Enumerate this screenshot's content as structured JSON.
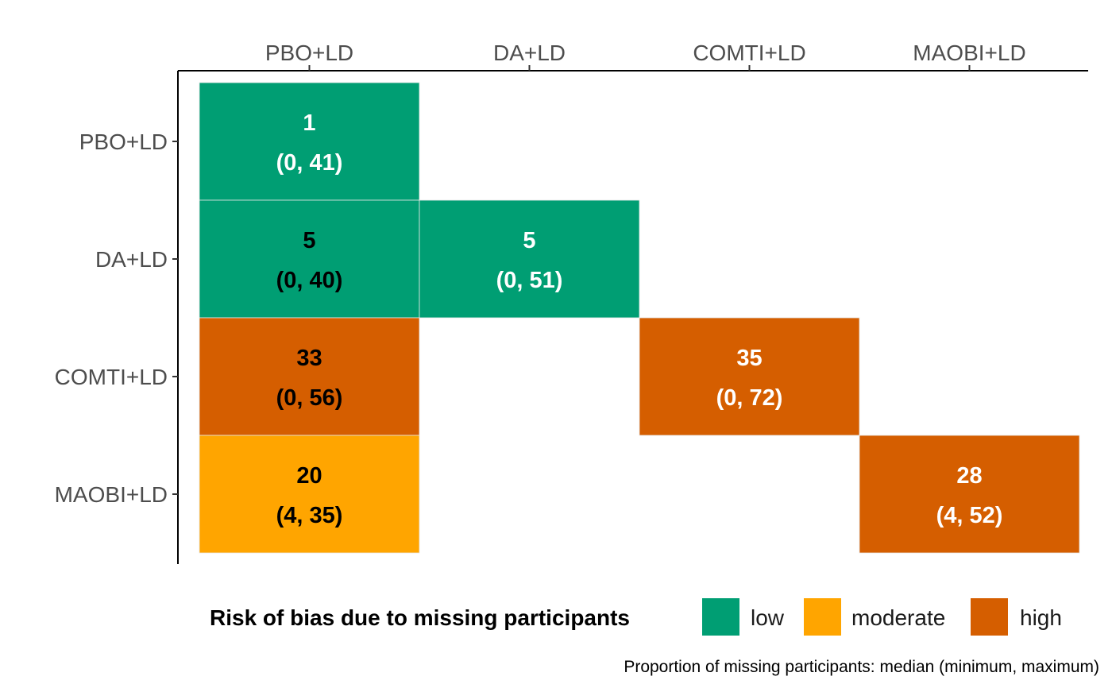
{
  "chart_data": {
    "type": "heatmap",
    "x_categories": [
      "PBO+LD",
      "DA+LD",
      "COMTI+LD",
      "MAOBI+LD"
    ],
    "y_categories": [
      "PBO+LD",
      "DA+LD",
      "COMTI+LD",
      "MAOBI+LD"
    ],
    "cells": [
      {
        "x": "PBO+LD",
        "y": "PBO+LD",
        "median": "1",
        "range": "(0, 41)",
        "risk": "low",
        "text_color": "#ffffff"
      },
      {
        "x": "PBO+LD",
        "y": "DA+LD",
        "median": "5",
        "range": "(0, 40)",
        "risk": "low",
        "text_color": "#000000"
      },
      {
        "x": "DA+LD",
        "y": "DA+LD",
        "median": "5",
        "range": "(0, 51)",
        "risk": "low",
        "text_color": "#ffffff"
      },
      {
        "x": "PBO+LD",
        "y": "COMTI+LD",
        "median": "33",
        "range": "(0, 56)",
        "risk": "high",
        "text_color": "#000000"
      },
      {
        "x": "COMTI+LD",
        "y": "COMTI+LD",
        "median": "35",
        "range": "(0, 72)",
        "risk": "high",
        "text_color": "#ffffff"
      },
      {
        "x": "PBO+LD",
        "y": "MAOBI+LD",
        "median": "20",
        "range": "(4, 35)",
        "risk": "moderate",
        "text_color": "#000000"
      },
      {
        "x": "MAOBI+LD",
        "y": "MAOBI+LD",
        "median": "28",
        "range": "(4, 52)",
        "risk": "high",
        "text_color": "#ffffff"
      }
    ],
    "legend": {
      "title": "Risk of bias due to missing participants",
      "position": "bottom",
      "entries": [
        {
          "label": "low",
          "color": "#009E73"
        },
        {
          "label": "moderate",
          "color": "#FFA500"
        },
        {
          "label": "high",
          "color": "#D55E00"
        }
      ]
    },
    "caption": "Proportion of missing participants: median (minimum, maximum)",
    "x_axis_position": "top",
    "grid": false
  }
}
